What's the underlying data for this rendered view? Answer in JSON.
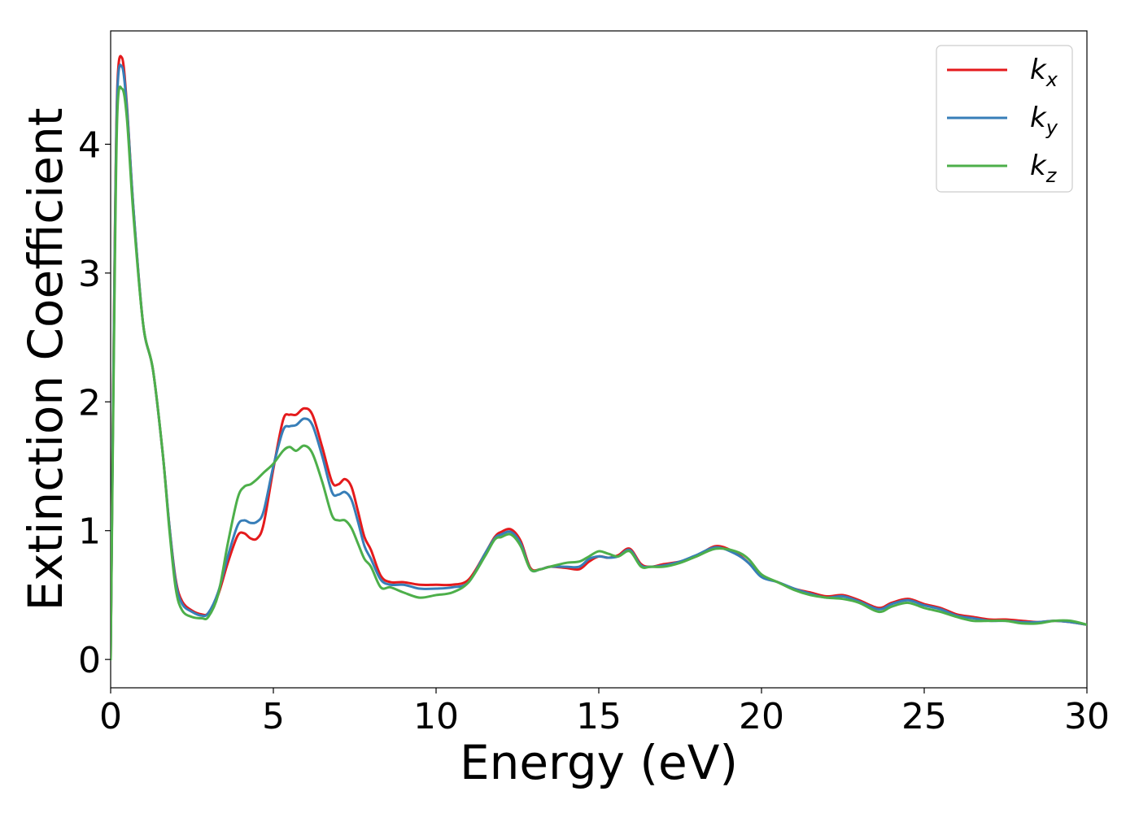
{
  "chart_data": {
    "type": "line",
    "xlabel": "Energy (eV)",
    "ylabel": "Extinction Coefficient",
    "xlim": [
      0,
      30
    ],
    "ylim": [
      -0.22,
      4.88
    ],
    "x_ticks": [
      0,
      5,
      10,
      15,
      20,
      25,
      30
    ],
    "y_ticks": [
      0,
      1,
      2,
      3,
      4
    ],
    "grid": false,
    "legend_position": "top-right",
    "series": [
      {
        "name": "k_x",
        "label_base": "k",
        "label_sub": "x",
        "color": "#e41a1c",
        "x": [
          0,
          0.1,
          0.2,
          0.35,
          0.5,
          0.7,
          1.0,
          1.3,
          1.6,
          1.8,
          2.0,
          2.2,
          2.5,
          2.8,
          3.0,
          3.3,
          3.6,
          3.9,
          4.1,
          4.3,
          4.5,
          4.7,
          5.0,
          5.3,
          5.5,
          5.7,
          5.95,
          6.2,
          6.5,
          6.8,
          7.0,
          7.2,
          7.4,
          7.6,
          7.8,
          8.0,
          8.3,
          8.6,
          9.0,
          9.5,
          10.0,
          10.5,
          11.0,
          11.5,
          11.8,
          12.0,
          12.3,
          12.6,
          12.9,
          13.2,
          13.5,
          14.0,
          14.4,
          14.7,
          15.0,
          15.3,
          15.6,
          15.95,
          16.3,
          16.6,
          17.0,
          17.5,
          18.0,
          18.6,
          19.2,
          19.6,
          20.0,
          20.5,
          21.0,
          21.5,
          22.0,
          22.5,
          23.0,
          23.6,
          24.0,
          24.5,
          25.0,
          25.5,
          26.0,
          26.5,
          27.0,
          27.5,
          28.0,
          28.5,
          29.0,
          29.5,
          30.0
        ],
        "values": [
          0.0,
          2.6,
          4.4,
          4.67,
          4.3,
          3.5,
          2.6,
          2.25,
          1.6,
          1.05,
          0.62,
          0.45,
          0.38,
          0.35,
          0.36,
          0.5,
          0.75,
          0.96,
          0.98,
          0.94,
          0.94,
          1.05,
          1.48,
          1.86,
          1.9,
          1.9,
          1.95,
          1.9,
          1.65,
          1.38,
          1.36,
          1.4,
          1.34,
          1.15,
          0.95,
          0.85,
          0.65,
          0.6,
          0.6,
          0.58,
          0.58,
          0.58,
          0.62,
          0.82,
          0.95,
          0.99,
          1.01,
          0.92,
          0.71,
          0.7,
          0.72,
          0.71,
          0.7,
          0.76,
          0.8,
          0.79,
          0.81,
          0.86,
          0.74,
          0.72,
          0.74,
          0.76,
          0.8,
          0.88,
          0.83,
          0.75,
          0.65,
          0.6,
          0.55,
          0.52,
          0.49,
          0.5,
          0.46,
          0.4,
          0.44,
          0.47,
          0.43,
          0.4,
          0.35,
          0.33,
          0.31,
          0.31,
          0.3,
          0.29,
          0.3,
          0.29,
          0.27
        ]
      },
      {
        "name": "k_y",
        "label_base": "k",
        "label_sub": "y",
        "color": "#377eb8",
        "x": [
          0,
          0.1,
          0.2,
          0.35,
          0.5,
          0.7,
          1.0,
          1.3,
          1.6,
          1.8,
          2.0,
          2.2,
          2.5,
          2.8,
          3.0,
          3.3,
          3.6,
          3.9,
          4.1,
          4.3,
          4.5,
          4.7,
          5.0,
          5.3,
          5.5,
          5.7,
          5.95,
          6.2,
          6.5,
          6.8,
          7.0,
          7.2,
          7.4,
          7.6,
          7.8,
          8.0,
          8.3,
          8.6,
          9.0,
          9.5,
          10.0,
          10.5,
          11.0,
          11.5,
          11.8,
          12.0,
          12.3,
          12.6,
          12.9,
          13.2,
          13.5,
          14.0,
          14.4,
          14.7,
          15.0,
          15.3,
          15.6,
          15.95,
          16.3,
          16.6,
          17.0,
          17.5,
          18.0,
          18.6,
          19.2,
          19.6,
          20.0,
          20.5,
          21.0,
          21.5,
          22.0,
          22.5,
          23.0,
          23.6,
          24.0,
          24.5,
          25.0,
          25.5,
          26.0,
          26.5,
          27.0,
          27.5,
          28.0,
          28.5,
          29.0,
          29.5,
          30.0
        ],
        "values": [
          0.0,
          2.55,
          4.35,
          4.6,
          4.28,
          3.5,
          2.6,
          2.25,
          1.6,
          1.05,
          0.6,
          0.43,
          0.37,
          0.34,
          0.36,
          0.52,
          0.8,
          1.04,
          1.08,
          1.06,
          1.07,
          1.15,
          1.5,
          1.78,
          1.81,
          1.82,
          1.87,
          1.82,
          1.58,
          1.3,
          1.28,
          1.3,
          1.24,
          1.07,
          0.88,
          0.78,
          0.62,
          0.58,
          0.58,
          0.55,
          0.55,
          0.56,
          0.6,
          0.82,
          0.94,
          0.97,
          0.99,
          0.9,
          0.7,
          0.7,
          0.72,
          0.72,
          0.72,
          0.78,
          0.8,
          0.79,
          0.8,
          0.85,
          0.73,
          0.72,
          0.73,
          0.76,
          0.81,
          0.87,
          0.82,
          0.75,
          0.64,
          0.6,
          0.55,
          0.51,
          0.48,
          0.49,
          0.45,
          0.39,
          0.43,
          0.46,
          0.42,
          0.39,
          0.34,
          0.32,
          0.3,
          0.3,
          0.29,
          0.29,
          0.3,
          0.29,
          0.27
        ]
      },
      {
        "name": "k_z",
        "label_base": "k",
        "label_sub": "z",
        "color": "#4daf4a",
        "x": [
          0,
          0.1,
          0.2,
          0.35,
          0.5,
          0.7,
          1.0,
          1.3,
          1.6,
          1.8,
          2.0,
          2.2,
          2.5,
          2.8,
          3.0,
          3.3,
          3.6,
          3.9,
          4.1,
          4.3,
          4.5,
          4.7,
          5.0,
          5.3,
          5.5,
          5.7,
          5.95,
          6.2,
          6.5,
          6.8,
          7.0,
          7.2,
          7.4,
          7.6,
          7.8,
          8.0,
          8.3,
          8.6,
          9.0,
          9.5,
          10.0,
          10.5,
          11.0,
          11.5,
          11.8,
          12.0,
          12.3,
          12.6,
          12.9,
          13.2,
          13.5,
          14.0,
          14.4,
          14.7,
          15.0,
          15.3,
          15.6,
          15.95,
          16.3,
          16.6,
          17.0,
          17.5,
          18.0,
          18.6,
          19.2,
          19.6,
          20.0,
          20.5,
          21.0,
          21.5,
          22.0,
          22.5,
          23.0,
          23.6,
          24.0,
          24.5,
          25.0,
          25.5,
          26.0,
          26.5,
          27.0,
          27.5,
          28.0,
          28.5,
          29.0,
          29.5,
          30.0
        ],
        "values": [
          0.0,
          2.4,
          4.2,
          4.43,
          4.2,
          3.45,
          2.6,
          2.25,
          1.6,
          1.02,
          0.55,
          0.38,
          0.33,
          0.32,
          0.33,
          0.5,
          0.9,
          1.25,
          1.34,
          1.36,
          1.4,
          1.45,
          1.52,
          1.62,
          1.65,
          1.62,
          1.66,
          1.6,
          1.38,
          1.12,
          1.08,
          1.08,
          1.02,
          0.9,
          0.78,
          0.72,
          0.56,
          0.56,
          0.52,
          0.48,
          0.5,
          0.52,
          0.6,
          0.8,
          0.93,
          0.95,
          0.97,
          0.88,
          0.7,
          0.7,
          0.72,
          0.75,
          0.76,
          0.8,
          0.84,
          0.82,
          0.8,
          0.84,
          0.72,
          0.72,
          0.72,
          0.75,
          0.8,
          0.86,
          0.84,
          0.78,
          0.66,
          0.6,
          0.54,
          0.5,
          0.48,
          0.47,
          0.44,
          0.37,
          0.41,
          0.44,
          0.4,
          0.37,
          0.33,
          0.3,
          0.3,
          0.3,
          0.28,
          0.28,
          0.3,
          0.3,
          0.27
        ]
      }
    ]
  }
}
